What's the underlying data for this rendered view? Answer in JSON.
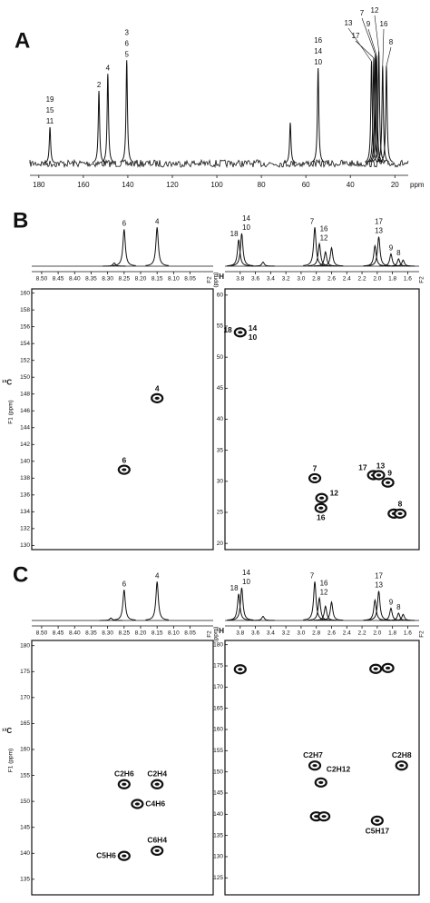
{
  "panels": [
    {
      "label": "A",
      "spectra": [
        {
          "xlim": [
            184,
            14
          ],
          "ticks": [
            180,
            160,
            140,
            120,
            100,
            80,
            60,
            40,
            20
          ],
          "unit": "ppm",
          "peaks": [
            {
              "shift": 175,
              "height": 0.32,
              "labels": [
                "19",
                "15",
                "11"
              ]
            },
            {
              "shift": 153,
              "height": 0.64,
              "labels": [
                "2"
              ]
            },
            {
              "shift": 149,
              "height": 0.79,
              "labels": [
                "4"
              ]
            },
            {
              "shift": 140.5,
              "height": 0.91,
              "labels": [
                "3",
                "6",
                "5"
              ]
            },
            {
              "shift": 67,
              "height": 0.36
            },
            {
              "shift": 54.5,
              "height": 0.84,
              "labels": [
                "16",
                "14",
                "10"
              ]
            },
            {
              "shift": 30.5,
              "height": 0.9,
              "labels": [
                "13"
              ]
            },
            {
              "shift": 29.5,
              "height": 0.93,
              "labels": [
                "17"
              ]
            },
            {
              "shift": 28.8,
              "height": 0.96,
              "labels": [
                "7"
              ]
            },
            {
              "shift": 28.2,
              "height": 0.95,
              "labels": [
                "9"
              ]
            },
            {
              "shift": 27.2,
              "height": 0.99,
              "labels": [
                "12"
              ]
            },
            {
              "shift": 25.5,
              "height": 0.86,
              "labels": [
                "16"
              ]
            },
            {
              "shift": 23.8,
              "height": 0.86,
              "labels": [
                "8"
              ]
            }
          ]
        }
      ]
    },
    {
      "label": "B",
      "spectra": [
        {
          "xlim": [
            8.53,
            7.98
          ],
          "ticks": [
            {
              "value": 8.5,
              "label": "8.50"
            },
            8.45,
            {
              "value": 8.4,
              "label": "8.40"
            },
            8.35,
            {
              "value": 8.3,
              "label": "8.30"
            },
            8.25,
            {
              "value": 8.2,
              "label": "8.20"
            },
            8.15,
            {
              "value": 8.1,
              "label": "8.10"
            },
            8.05
          ],
          "axis_title": [
            "F2",
            "(ppm)"
          ],
          "peaks": [
            {
              "shift": 8.28,
              "height": 0.08
            },
            {
              "shift": 8.25,
              "height": 0.9,
              "labels": [
                "6"
              ]
            },
            {
              "shift": 8.15,
              "height": 0.95,
              "labels": [
                "4"
              ]
            }
          ]
        },
        {
          "xlim": [
            4.0,
            1.45
          ],
          "nucleus": "¹H",
          "ticks": [
            3.8,
            3.6,
            3.4,
            3.2,
            {
              "value": 3,
              "label": "3.0"
            },
            2.8,
            2.6,
            2.4,
            2.2,
            {
              "value": 2,
              "label": "2.0"
            },
            1.8,
            1.6
          ],
          "axis_title": [
            "F2"
          ],
          "peaks": [
            {
              "shift": 3.82,
              "height": 0.65,
              "labels": [
                "18"
              ]
            },
            {
              "shift": 3.78,
              "height": 0.8,
              "labels": [
                "14",
                "10"
              ]
            },
            {
              "shift": 3.5,
              "height": 0.1
            },
            {
              "shift": 2.82,
              "height": 0.95,
              "labels": [
                "7"
              ]
            },
            {
              "shift": 2.76,
              "height": 0.55,
              "labels": [
                "16",
                "12"
              ]
            },
            {
              "shift": 2.68,
              "height": 0.35
            },
            {
              "shift": 2.6,
              "height": 0.45
            },
            {
              "shift": 2.03,
              "height": 0.5
            },
            {
              "shift": 1.98,
              "height": 0.72,
              "labels": [
                "17",
                "13"
              ]
            },
            {
              "shift": 1.82,
              "height": 0.3,
              "labels": [
                "9"
              ]
            },
            {
              "shift": 1.72,
              "height": 0.18,
              "labels": [
                "8"
              ]
            },
            {
              "shift": 1.66,
              "height": 0.15
            }
          ]
        }
      ],
      "maps": [
        {
          "ylim": [
            160.5,
            129.5
          ],
          "ticks": [
            160,
            158,
            156,
            154,
            152,
            150,
            148,
            146,
            144,
            142,
            140,
            138,
            136,
            134,
            132,
            130
          ],
          "nucleus": "¹³C",
          "axis_title": "F1 (ppm)",
          "peaks": [
            {
              "f2": 8.15,
              "f1": 147.5,
              "labels": [
                "4"
              ]
            },
            {
              "f2": 8.25,
              "f1": 139,
              "labels": [
                "6"
              ]
            }
          ]
        },
        {
          "ylim": [
            61,
            19
          ],
          "ticks": [
            60,
            55,
            50,
            45,
            40,
            35,
            30,
            25,
            20
          ],
          "peaks": [
            {
              "f2": 3.8,
              "f1": 54,
              "labels": [
                "18",
                "14",
                "10"
              ]
            },
            {
              "f2": 2.82,
              "f1": 30.5,
              "labels": [
                "7"
              ]
            },
            {
              "f2": 2.73,
              "f1": 27.3,
              "labels": [
                "12"
              ]
            },
            {
              "f2": 2.74,
              "f1": 25.7,
              "labels": [
                "16"
              ]
            },
            {
              "f2": 2.05,
              "f1": 31,
              "labels": [
                "17"
              ]
            },
            {
              "f2": 1.98,
              "f1": 31,
              "labels": [
                "13"
              ]
            },
            {
              "f2": 1.86,
              "f1": 29.8,
              "labels": [
                "9"
              ]
            },
            {
              "f2": 1.78,
              "f1": 24.8
            },
            {
              "f2": 1.7,
              "f1": 24.8,
              "labels": [
                "8"
              ]
            }
          ]
        }
      ]
    },
    {
      "label": "C",
      "spectra": [
        {
          "xlim": [
            8.53,
            7.98
          ],
          "ticks": [
            {
              "value": 8.5,
              "label": "8.50"
            },
            8.45,
            {
              "value": 8.4,
              "label": "8.40"
            },
            8.35,
            {
              "value": 8.3,
              "label": "8.30"
            },
            8.25,
            {
              "value": 8.2,
              "label": "8.20"
            },
            8.15,
            {
              "value": 8.1,
              "label": "8.10"
            },
            8.05
          ],
          "axis_title": [
            "F2",
            "(ppm)"
          ],
          "peaks": [
            {
              "shift": 8.29,
              "height": 0.06
            },
            {
              "shift": 8.25,
              "height": 0.75,
              "labels": [
                "6"
              ]
            },
            {
              "shift": 8.15,
              "height": 0.95,
              "labels": [
                "4"
              ]
            }
          ]
        },
        {
          "xlim": [
            4.0,
            1.45
          ],
          "nucleus": "¹H",
          "ticks": [
            3.8,
            3.6,
            3.4,
            3.2,
            {
              "value": 3,
              "label": "3.0"
            },
            2.8,
            2.6,
            2.4,
            2.2,
            {
              "value": 2,
              "label": "2.0"
            },
            1.8,
            1.6
          ],
          "axis_title": [
            "F2"
          ],
          "peaks": [
            {
              "shift": 3.82,
              "height": 0.65,
              "labels": [
                "18"
              ]
            },
            {
              "shift": 3.78,
              "height": 0.8,
              "labels": [
                "14",
                "10"
              ]
            },
            {
              "shift": 3.5,
              "height": 0.1
            },
            {
              "shift": 2.82,
              "height": 0.95,
              "labels": [
                "7"
              ]
            },
            {
              "shift": 2.76,
              "height": 0.55,
              "labels": [
                "16",
                "12"
              ]
            },
            {
              "shift": 2.68,
              "height": 0.35
            },
            {
              "shift": 2.6,
              "height": 0.45
            },
            {
              "shift": 2.03,
              "height": 0.5
            },
            {
              "shift": 1.98,
              "height": 0.72,
              "labels": [
                "17",
                "13"
              ]
            },
            {
              "shift": 1.82,
              "height": 0.3,
              "labels": [
                "9"
              ]
            },
            {
              "shift": 1.72,
              "height": 0.18,
              "labels": [
                "8"
              ]
            },
            {
              "shift": 1.66,
              "height": 0.15
            }
          ]
        }
      ],
      "maps": [
        {
          "ylim": [
            181,
            132
          ],
          "ticks": [
            180,
            175,
            170,
            165,
            160,
            155,
            150,
            145,
            140,
            135
          ],
          "nucleus": "¹³C",
          "axis_title": "F1 (ppm)",
          "peaks": [
            {
              "f2": 8.25,
              "f1": 153.3,
              "labels": [
                "C2H6"
              ]
            },
            {
              "f2": 8.15,
              "f1": 153.3,
              "labels": [
                "C2H4"
              ]
            },
            {
              "f2": 8.21,
              "f1": 149.5,
              "labels": [
                "C4H6"
              ]
            },
            {
              "f2": 8.15,
              "f1": 140.5,
              "labels": [
                "C6H4"
              ]
            },
            {
              "f2": 8.25,
              "f1": 139.5,
              "labels": [
                "C5H6"
              ]
            }
          ]
        },
        {
          "ylim": [
            181,
            121
          ],
          "ticks": [
            180,
            175,
            170,
            165,
            160,
            155,
            150,
            145,
            140,
            135,
            130,
            125
          ],
          "peaks": [
            {
              "f2": 3.8,
              "f1": 174.2
            },
            {
              "f2": 2.02,
              "f1": 174.3
            },
            {
              "f2": 1.86,
              "f1": 174.5
            },
            {
              "f2": 2.82,
              "f1": 151.5,
              "labels": [
                "C2H7"
              ]
            },
            {
              "f2": 2.74,
              "f1": 147.5,
              "labels": [
                "C2H12"
              ]
            },
            {
              "f2": 2.8,
              "f1": 139.5
            },
            {
              "f2": 2.7,
              "f1": 139.5
            },
            {
              "f2": 2.0,
              "f1": 138.5,
              "labels": [
                "C5H17"
              ]
            },
            {
              "f2": 1.68,
              "f1": 151.5,
              "labels": [
                "C2H8"
              ]
            }
          ]
        }
      ]
    }
  ]
}
